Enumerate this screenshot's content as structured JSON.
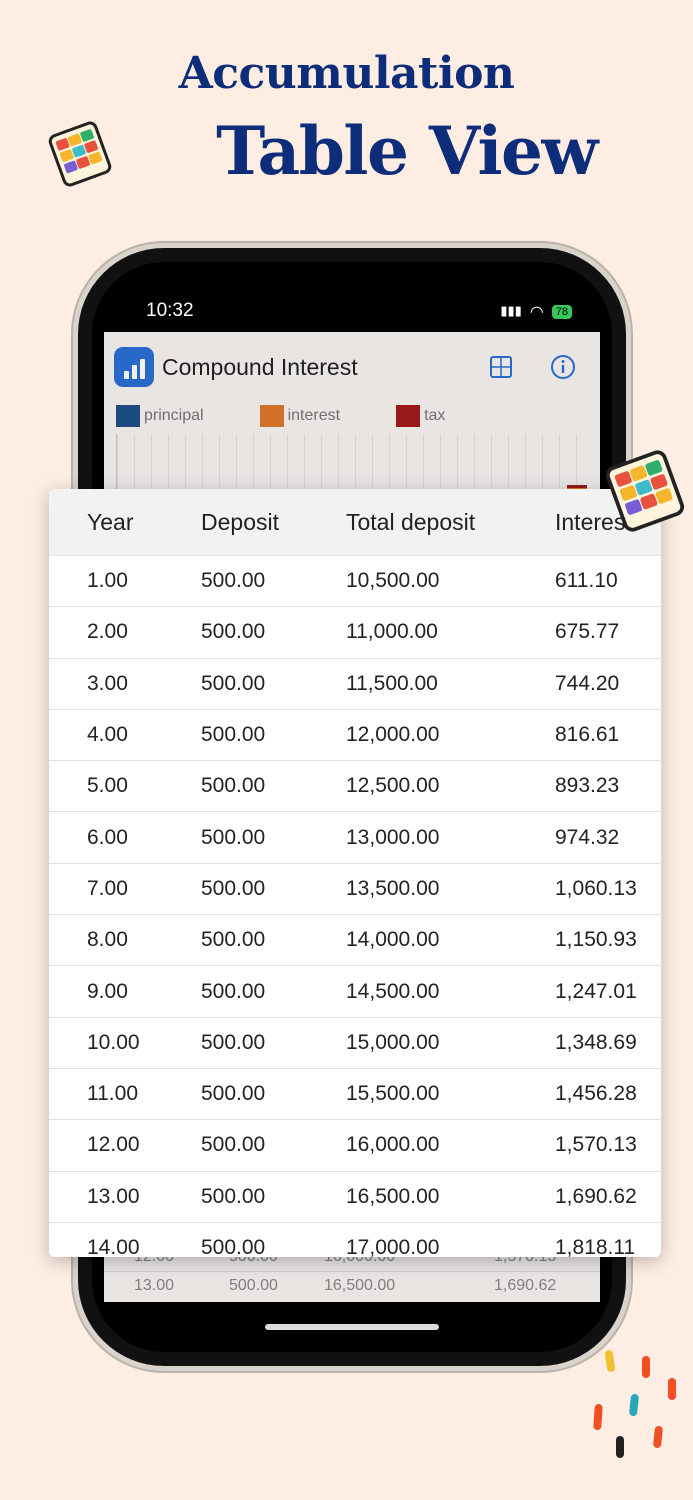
{
  "headline": {
    "line1": "Accumulation",
    "line2": "Table View"
  },
  "status_bar": {
    "time": "10:32",
    "battery": "78"
  },
  "app": {
    "title": "Compound Interest",
    "legend": [
      {
        "label": "principal",
        "color": "#1e4f8c"
      },
      {
        "label": "interest",
        "color": "#e0782a"
      },
      {
        "label": "tax",
        "color": "#a31a1a"
      }
    ],
    "background_rows": [
      [
        "12.00",
        "500.00",
        "16,000.00",
        "1,570.13"
      ],
      [
        "13.00",
        "500.00",
        "16,500.00",
        "1,690.62"
      ]
    ]
  },
  "table": {
    "columns": [
      "Year",
      "Deposit",
      "Total deposit",
      "Interest"
    ],
    "rows": [
      [
        "1.00",
        "500.00",
        "10,500.00",
        "611.10"
      ],
      [
        "2.00",
        "500.00",
        "11,000.00",
        "675.77"
      ],
      [
        "3.00",
        "500.00",
        "11,500.00",
        "744.20"
      ],
      [
        "4.00",
        "500.00",
        "12,000.00",
        "816.61"
      ],
      [
        "5.00",
        "500.00",
        "12,500.00",
        "893.23"
      ],
      [
        "6.00",
        "500.00",
        "13,000.00",
        "974.32"
      ],
      [
        "7.00",
        "500.00",
        "13,500.00",
        "1,060.13"
      ],
      [
        "8.00",
        "500.00",
        "14,000.00",
        "1,150.93"
      ],
      [
        "9.00",
        "500.00",
        "14,500.00",
        "1,247.01"
      ],
      [
        "10.00",
        "500.00",
        "15,000.00",
        "1,348.69"
      ],
      [
        "11.00",
        "500.00",
        "15,500.00",
        "1,456.28"
      ],
      [
        "12.00",
        "500.00",
        "16,000.00",
        "1,570.13"
      ],
      [
        "13.00",
        "500.00",
        "16,500.00",
        "1,690.62"
      ],
      [
        "14.00",
        "500.00",
        "17,000.00",
        "1,818.11"
      ]
    ]
  },
  "icons": {
    "app_logo": "bar-chart-icon",
    "calculator": "calculator-icon",
    "info": "info-icon",
    "sticker": "colorful-grid-sticker-icon"
  }
}
